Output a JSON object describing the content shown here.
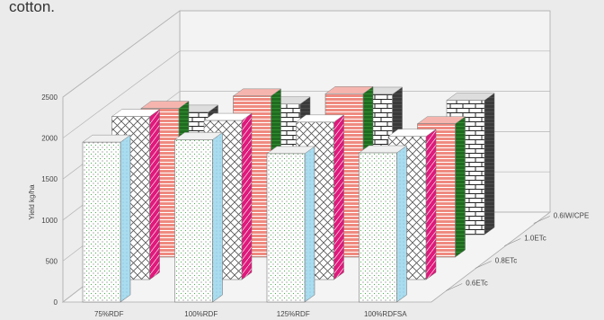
{
  "caption": "cotton.",
  "chart_data": {
    "type": "bar",
    "subtype": "3d-grouped-bar",
    "title": "",
    "ylabel": "Yield kg/ha",
    "xlabel": "",
    "ylim": [
      0,
      2500
    ],
    "yticks": [
      0,
      500,
      1000,
      1500,
      2000,
      2500
    ],
    "grid": true,
    "categories": [
      "75%RDF",
      "100%RDF",
      "125%RDF",
      "100%RDFSA"
    ],
    "series": [
      {
        "name": "0.6ETc",
        "values": [
          1950,
          1980,
          1810,
          1820
        ]
      },
      {
        "name": "0.8ETc",
        "values": [
          2050,
          2000,
          1980,
          1800
        ]
      },
      {
        "name": "1.0ETc",
        "values": [
          1930,
          2090,
          2120,
          1730
        ]
      },
      {
        "name": "0.6IW/CPE",
        "values": [
          1640,
          1750,
          1880,
          1800
        ]
      }
    ],
    "colors": {
      "0.6ETc": {
        "face": "#ffffff",
        "dot": "#4caf50",
        "side": "#a9dcef"
      },
      "0.8ETc": {
        "face": "#ffffff",
        "line": "#444444",
        "side": "#e0197c"
      },
      "1.0ETc": {
        "face": "#ef8a80",
        "line": "#ffffff",
        "side": "#1f6b1f"
      },
      "0.6IW/CPE": {
        "face": "#ffffff",
        "line": "#222222",
        "side": "#333333"
      }
    }
  }
}
